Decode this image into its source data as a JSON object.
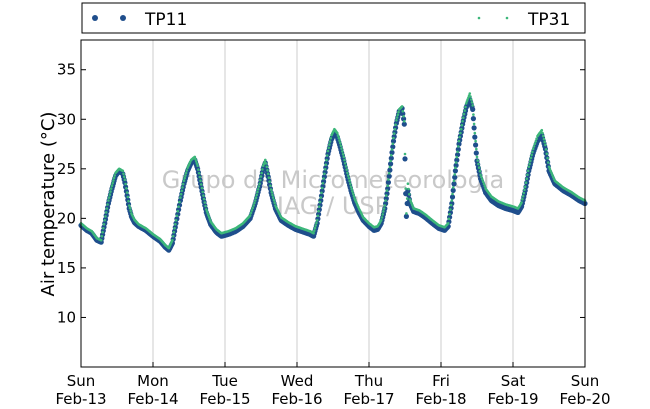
{
  "chart_data": {
    "type": "line",
    "ylabel": "Air temperature (°C)",
    "ylim": [
      5,
      38
    ],
    "yticks": [
      10,
      15,
      20,
      25,
      30,
      35
    ],
    "xlim": [
      0,
      7
    ],
    "x_ticks": [
      {
        "day": "Sun",
        "date": "Feb-13"
      },
      {
        "day": "Mon",
        "date": "Feb-14"
      },
      {
        "day": "Tue",
        "date": "Feb-15"
      },
      {
        "day": "Wed",
        "date": "Feb-16"
      },
      {
        "day": "Thu",
        "date": "Feb-17"
      },
      {
        "day": "Fri",
        "date": "Feb-18"
      },
      {
        "day": "Sat",
        "date": "Feb-19"
      },
      {
        "day": "Sun",
        "date": "Feb-20"
      }
    ],
    "grid": "vertical",
    "legend_placement": "top",
    "watermark": [
      "Grupo de Micrometeorologia",
      "IAG / USP"
    ],
    "series": [
      {
        "name": "TP11",
        "color": "#1f4e8c",
        "marker": "circle",
        "points": [
          [
            0.0,
            19.3
          ],
          [
            0.08,
            18.8
          ],
          [
            0.15,
            18.5
          ],
          [
            0.22,
            17.8
          ],
          [
            0.28,
            17.6
          ],
          [
            0.33,
            19.5
          ],
          [
            0.38,
            21.5
          ],
          [
            0.43,
            23.0
          ],
          [
            0.48,
            24.3
          ],
          [
            0.53,
            24.8
          ],
          [
            0.58,
            24.5
          ],
          [
            0.61,
            23.6
          ],
          [
            0.64,
            22.3
          ],
          [
            0.67,
            21.0
          ],
          [
            0.7,
            20.2
          ],
          [
            0.74,
            19.6
          ],
          [
            0.8,
            19.2
          ],
          [
            0.9,
            18.8
          ],
          [
            1.0,
            18.2
          ],
          [
            1.1,
            17.7
          ],
          [
            1.17,
            17.1
          ],
          [
            1.22,
            16.8
          ],
          [
            1.27,
            17.5
          ],
          [
            1.32,
            19.5
          ],
          [
            1.38,
            21.8
          ],
          [
            1.43,
            23.5
          ],
          [
            1.48,
            24.8
          ],
          [
            1.53,
            25.6
          ],
          [
            1.58,
            25.9
          ],
          [
            1.62,
            25.0
          ],
          [
            1.66,
            23.5
          ],
          [
            1.7,
            22.0
          ],
          [
            1.74,
            20.6
          ],
          [
            1.8,
            19.4
          ],
          [
            1.88,
            18.6
          ],
          [
            1.95,
            18.2
          ],
          [
            2.05,
            18.4
          ],
          [
            2.15,
            18.7
          ],
          [
            2.25,
            19.2
          ],
          [
            2.35,
            20.0
          ],
          [
            2.42,
            21.5
          ],
          [
            2.48,
            23.2
          ],
          [
            2.53,
            25.0
          ],
          [
            2.56,
            25.6
          ],
          [
            2.6,
            24.2
          ],
          [
            2.64,
            22.6
          ],
          [
            2.7,
            21.0
          ],
          [
            2.78,
            19.8
          ],
          [
            2.88,
            19.3
          ],
          [
            2.98,
            18.9
          ],
          [
            3.1,
            18.6
          ],
          [
            3.18,
            18.4
          ],
          [
            3.23,
            18.2
          ],
          [
            3.28,
            19.5
          ],
          [
            3.33,
            21.8
          ],
          [
            3.38,
            24.2
          ],
          [
            3.43,
            26.5
          ],
          [
            3.48,
            28.0
          ],
          [
            3.52,
            28.6
          ],
          [
            3.56,
            28.2
          ],
          [
            3.6,
            27.2
          ],
          [
            3.65,
            25.8
          ],
          [
            3.7,
            24.2
          ],
          [
            3.75,
            22.8
          ],
          [
            3.8,
            21.6
          ],
          [
            3.86,
            20.6
          ],
          [
            3.92,
            19.8
          ],
          [
            4.0,
            19.2
          ],
          [
            4.07,
            18.8
          ],
          [
            4.12,
            18.9
          ],
          [
            4.17,
            19.5
          ],
          [
            4.22,
            21.0
          ],
          [
            4.26,
            23.0
          ],
          [
            4.3,
            25.5
          ],
          [
            4.34,
            27.8
          ],
          [
            4.38,
            29.6
          ],
          [
            4.42,
            30.8
          ],
          [
            4.46,
            31.1
          ],
          [
            4.49,
            29.5
          ],
          [
            4.5,
            26.0
          ],
          [
            4.51,
            22.5
          ],
          [
            4.52,
            20.2
          ],
          [
            4.54,
            22.8
          ],
          [
            4.57,
            21.5
          ],
          [
            4.62,
            20.7
          ],
          [
            4.7,
            20.5
          ],
          [
            4.78,
            20.1
          ],
          [
            4.88,
            19.5
          ],
          [
            4.97,
            19.0
          ],
          [
            5.05,
            18.8
          ],
          [
            5.1,
            19.2
          ],
          [
            5.15,
            21.5
          ],
          [
            5.2,
            24.8
          ],
          [
            5.25,
            27.5
          ],
          [
            5.3,
            29.5
          ],
          [
            5.35,
            31.2
          ],
          [
            5.4,
            32.0
          ],
          [
            5.44,
            31.0
          ],
          [
            5.47,
            28.2
          ],
          [
            5.5,
            25.8
          ],
          [
            5.55,
            24.0
          ],
          [
            5.62,
            22.6
          ],
          [
            5.7,
            21.8
          ],
          [
            5.8,
            21.3
          ],
          [
            5.9,
            21.0
          ],
          [
            6.0,
            20.8
          ],
          [
            6.07,
            20.6
          ],
          [
            6.12,
            21.2
          ],
          [
            6.17,
            22.8
          ],
          [
            6.22,
            24.8
          ],
          [
            6.28,
            26.6
          ],
          [
            6.34,
            27.8
          ],
          [
            6.4,
            28.4
          ],
          [
            6.45,
            27.0
          ],
          [
            6.5,
            24.8
          ],
          [
            6.58,
            23.5
          ],
          [
            6.7,
            22.8
          ],
          [
            6.82,
            22.3
          ],
          [
            6.92,
            21.8
          ],
          [
            7.0,
            21.5
          ]
        ]
      },
      {
        "name": "TP31",
        "color": "#3cb77a",
        "marker": "point",
        "points": [
          [
            0.0,
            19.5
          ],
          [
            0.08,
            19.0
          ],
          [
            0.15,
            18.7
          ],
          [
            0.22,
            18.0
          ],
          [
            0.28,
            17.8
          ],
          [
            0.33,
            19.8
          ],
          [
            0.38,
            21.8
          ],
          [
            0.43,
            23.3
          ],
          [
            0.48,
            24.6
          ],
          [
            0.53,
            25.0
          ],
          [
            0.58,
            24.8
          ],
          [
            0.61,
            23.9
          ],
          [
            0.64,
            22.6
          ],
          [
            0.67,
            21.3
          ],
          [
            0.7,
            20.5
          ],
          [
            0.74,
            19.9
          ],
          [
            0.8,
            19.4
          ],
          [
            0.9,
            19.0
          ],
          [
            1.0,
            18.4
          ],
          [
            1.1,
            17.9
          ],
          [
            1.17,
            17.3
          ],
          [
            1.22,
            17.0
          ],
          [
            1.27,
            17.8
          ],
          [
            1.32,
            19.8
          ],
          [
            1.38,
            22.1
          ],
          [
            1.43,
            23.8
          ],
          [
            1.48,
            25.1
          ],
          [
            1.53,
            25.9
          ],
          [
            1.58,
            26.2
          ],
          [
            1.62,
            25.3
          ],
          [
            1.66,
            23.8
          ],
          [
            1.7,
            22.3
          ],
          [
            1.74,
            20.9
          ],
          [
            1.8,
            19.7
          ],
          [
            1.88,
            18.9
          ],
          [
            1.95,
            18.5
          ],
          [
            2.05,
            18.7
          ],
          [
            2.15,
            19.0
          ],
          [
            2.25,
            19.5
          ],
          [
            2.35,
            20.3
          ],
          [
            2.42,
            21.8
          ],
          [
            2.48,
            23.5
          ],
          [
            2.53,
            25.3
          ],
          [
            2.56,
            25.9
          ],
          [
            2.6,
            24.5
          ],
          [
            2.64,
            22.9
          ],
          [
            2.7,
            21.3
          ],
          [
            2.78,
            20.1
          ],
          [
            2.88,
            19.6
          ],
          [
            2.98,
            19.2
          ],
          [
            3.1,
            18.9
          ],
          [
            3.18,
            18.7
          ],
          [
            3.23,
            18.5
          ],
          [
            3.28,
            19.8
          ],
          [
            3.33,
            22.1
          ],
          [
            3.38,
            24.5
          ],
          [
            3.43,
            26.8
          ],
          [
            3.48,
            28.4
          ],
          [
            3.52,
            29.0
          ],
          [
            3.56,
            28.6
          ],
          [
            3.6,
            27.6
          ],
          [
            3.65,
            26.2
          ],
          [
            3.7,
            24.6
          ],
          [
            3.75,
            23.2
          ],
          [
            3.8,
            22.0
          ],
          [
            3.86,
            21.0
          ],
          [
            3.92,
            20.1
          ],
          [
            4.0,
            19.5
          ],
          [
            4.07,
            19.1
          ],
          [
            4.12,
            19.2
          ],
          [
            4.17,
            19.8
          ],
          [
            4.22,
            21.3
          ],
          [
            4.26,
            23.3
          ],
          [
            4.3,
            25.8
          ],
          [
            4.34,
            28.1
          ],
          [
            4.38,
            29.9
          ],
          [
            4.42,
            31.0
          ],
          [
            4.46,
            31.3
          ],
          [
            4.49,
            29.8
          ],
          [
            4.5,
            26.5
          ],
          [
            4.51,
            23.0
          ],
          [
            4.52,
            20.5
          ],
          [
            4.54,
            23.5
          ],
          [
            4.57,
            21.9
          ],
          [
            4.62,
            21.0
          ],
          [
            4.7,
            20.8
          ],
          [
            4.78,
            20.4
          ],
          [
            4.88,
            19.8
          ],
          [
            4.97,
            19.3
          ],
          [
            5.05,
            19.1
          ],
          [
            5.1,
            19.5
          ],
          [
            5.15,
            21.8
          ],
          [
            5.2,
            25.1
          ],
          [
            5.25,
            27.8
          ],
          [
            5.3,
            29.8
          ],
          [
            5.35,
            31.6
          ],
          [
            5.4,
            32.6
          ],
          [
            5.44,
            31.4
          ],
          [
            5.47,
            28.6
          ],
          [
            5.5,
            26.2
          ],
          [
            5.55,
            24.4
          ],
          [
            5.62,
            23.0
          ],
          [
            5.7,
            22.2
          ],
          [
            5.8,
            21.7
          ],
          [
            5.9,
            21.4
          ],
          [
            6.0,
            21.2
          ],
          [
            6.07,
            21.0
          ],
          [
            6.12,
            21.6
          ],
          [
            6.17,
            23.2
          ],
          [
            6.22,
            25.2
          ],
          [
            6.28,
            27.0
          ],
          [
            6.34,
            28.3
          ],
          [
            6.4,
            28.9
          ],
          [
            6.45,
            27.4
          ],
          [
            6.5,
            25.2
          ],
          [
            6.58,
            23.8
          ],
          [
            6.7,
            23.1
          ],
          [
            6.82,
            22.6
          ],
          [
            6.92,
            22.1
          ],
          [
            7.0,
            21.8
          ]
        ]
      }
    ]
  }
}
